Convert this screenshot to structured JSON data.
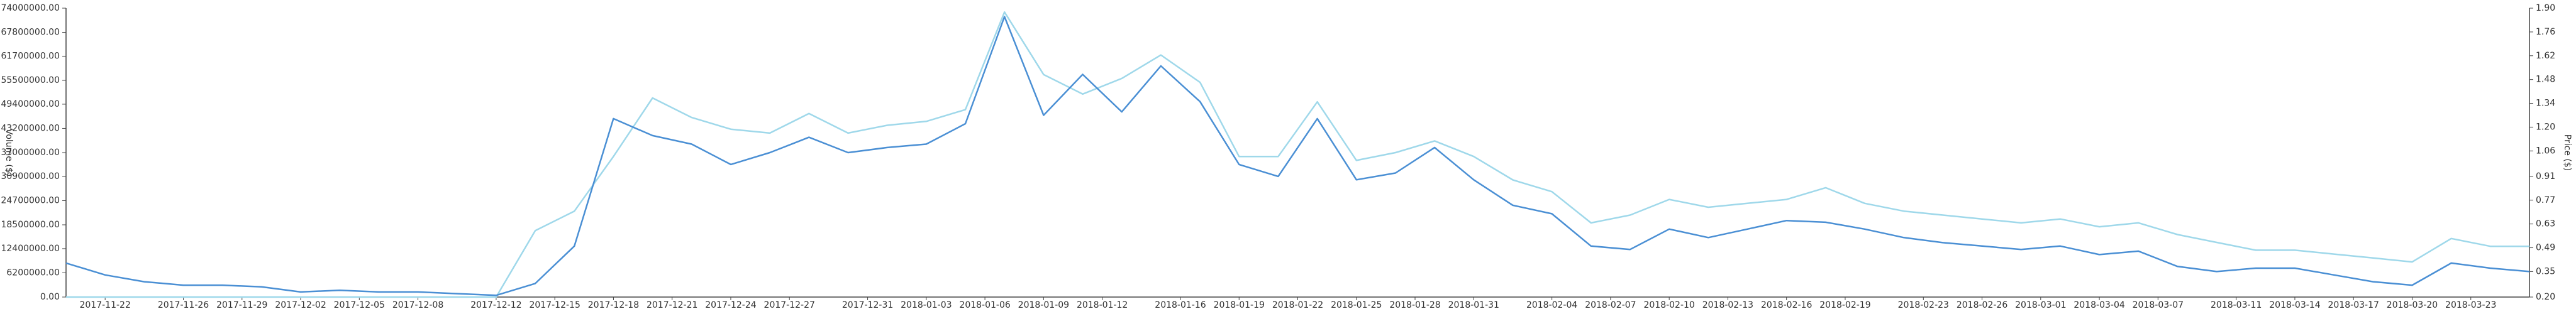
{
  "chart_data": {
    "type": "line",
    "ylabel": "Volume ($)",
    "y2label": "Price ($)",
    "x": [
      "2017-11-20",
      "2017-11-22",
      "2017-11-24",
      "2017-11-26",
      "2017-11-28",
      "2017-11-30",
      "2017-12-02",
      "2017-12-04",
      "2017-12-06",
      "2017-12-08",
      "2017-12-10",
      "2017-12-12",
      "2017-12-14",
      "2017-12-16",
      "2017-12-18",
      "2017-12-20",
      "2017-12-22",
      "2017-12-24",
      "2017-12-26",
      "2017-12-28",
      "2017-12-30",
      "2018-01-01",
      "2018-01-03",
      "2018-01-05",
      "2018-01-07",
      "2018-01-09",
      "2018-01-11",
      "2018-01-13",
      "2018-01-15",
      "2018-01-17",
      "2018-01-19",
      "2018-01-21",
      "2018-01-23",
      "2018-01-25",
      "2018-01-27",
      "2018-01-29",
      "2018-01-31",
      "2018-02-02",
      "2018-02-04",
      "2018-02-06",
      "2018-02-08",
      "2018-02-10",
      "2018-02-12",
      "2018-02-14",
      "2018-02-16",
      "2018-02-18",
      "2018-02-20",
      "2018-02-22",
      "2018-02-24",
      "2018-02-26",
      "2018-02-28",
      "2018-03-02",
      "2018-03-04",
      "2018-03-06",
      "2018-03-08",
      "2018-03-10",
      "2018-03-12",
      "2018-03-14",
      "2018-03-16",
      "2018-03-18",
      "2018-03-20",
      "2018-03-22",
      "2018-03-24",
      "2018-03-26"
    ],
    "xlim": [
      "2017-11-20",
      "2018-03-26"
    ],
    "xticks": [
      "2017-11-22",
      "2017-11-26",
      "2017-11-29",
      "2017-12-02",
      "2017-12-05",
      "2017-12-08",
      "2017-12-12",
      "2017-12-15",
      "2017-12-18",
      "2017-12-21",
      "2017-12-24",
      "2017-12-27",
      "2017-12-31",
      "2018-01-03",
      "2018-01-06",
      "2018-01-09",
      "2018-01-12",
      "2018-01-16",
      "2018-01-19",
      "2018-01-22",
      "2018-01-25",
      "2018-01-28",
      "2018-01-31",
      "2018-02-04",
      "2018-02-07",
      "2018-02-10",
      "2018-02-13",
      "2018-02-16",
      "2018-02-19",
      "2018-02-23",
      "2018-02-26",
      "2018-03-01",
      "2018-03-04",
      "2018-03-07",
      "2018-03-11",
      "2018-03-14",
      "2018-03-17",
      "2018-03-20",
      "2018-03-23"
    ],
    "ylim": [
      0,
      74000000
    ],
    "yticks": [
      {
        "value": 0,
        "label": "0.00"
      },
      {
        "value": 6200000,
        "label": "6200000.00"
      },
      {
        "value": 12400000,
        "label": "12400000.00"
      },
      {
        "value": 18500000,
        "label": "18500000.00"
      },
      {
        "value": 24700000,
        "label": "24700000.00"
      },
      {
        "value": 30900000,
        "label": "30900000.00"
      },
      {
        "value": 37000000,
        "label": "37000000.00"
      },
      {
        "value": 43200000,
        "label": "43200000.00"
      },
      {
        "value": 49400000,
        "label": "49400000.00"
      },
      {
        "value": 55500000,
        "label": "55500000.00"
      },
      {
        "value": 61700000,
        "label": "61700000.00"
      },
      {
        "value": 67800000,
        "label": "67800000.00"
      },
      {
        "value": 74000000,
        "label": "74000000.00"
      }
    ],
    "y2lim": [
      0.2,
      1.9
    ],
    "y2ticks": [
      {
        "value": 0.2,
        "label": "0.20"
      },
      {
        "value": 0.35,
        "label": "0.35"
      },
      {
        "value": 0.49,
        "label": "0.49"
      },
      {
        "value": 0.63,
        "label": "0.63"
      },
      {
        "value": 0.77,
        "label": "0.77"
      },
      {
        "value": 0.91,
        "label": "0.91"
      },
      {
        "value": 1.06,
        "label": "1.06"
      },
      {
        "value": 1.2,
        "label": "1.20"
      },
      {
        "value": 1.34,
        "label": "1.34"
      },
      {
        "value": 1.48,
        "label": "1.48"
      },
      {
        "value": 1.62,
        "label": "1.62"
      },
      {
        "value": 1.76,
        "label": "1.76"
      },
      {
        "value": 1.9,
        "label": "1.90"
      }
    ],
    "series": [
      {
        "color": "#9fd8ea",
        "values": [
          0,
          0,
          0,
          0,
          0,
          0,
          0,
          0,
          0,
          0,
          0,
          0,
          17000000,
          22000000,
          36000000,
          51000000,
          46000000,
          43000000,
          42000000,
          47000000,
          42000000,
          44000000,
          45000000,
          48000000,
          73000000,
          57000000,
          52000000,
          56000000,
          62000000,
          55000000,
          36000000,
          36000000,
          50000000,
          35000000,
          37000000,
          40000000,
          36000000,
          30000000,
          27000000,
          19000000,
          21000000,
          25000000,
          23000000,
          24000000,
          25000000,
          28000000,
          24000000,
          22000000,
          21000000,
          20000000,
          19000000,
          20000000,
          18000000,
          19000000,
          16000000,
          14000000,
          12000000,
          12000000,
          11000000,
          10000000,
          9000000,
          15000000,
          13000000,
          13000000
        ]
      },
      {
        "color": "#4a8fd4",
        "axis": "y2",
        "values": [
          0.4,
          0.33,
          0.29,
          0.27,
          0.27,
          0.26,
          0.23,
          0.24,
          0.23,
          0.23,
          0.22,
          0.21,
          0.28,
          0.5,
          1.25,
          1.15,
          1.1,
          0.98,
          1.05,
          1.14,
          1.05,
          1.08,
          1.1,
          1.22,
          1.85,
          1.27,
          1.51,
          1.29,
          1.56,
          1.35,
          0.98,
          0.91,
          1.25,
          0.89,
          0.93,
          1.08,
          0.89,
          0.74,
          0.69,
          0.5,
          0.48,
          0.6,
          0.55,
          0.6,
          0.65,
          0.64,
          0.6,
          0.55,
          0.52,
          0.5,
          0.48,
          0.5,
          0.45,
          0.47,
          0.38,
          0.35,
          0.37,
          0.37,
          0.33,
          0.29,
          0.27,
          0.4,
          0.37,
          0.35
        ]
      }
    ]
  }
}
